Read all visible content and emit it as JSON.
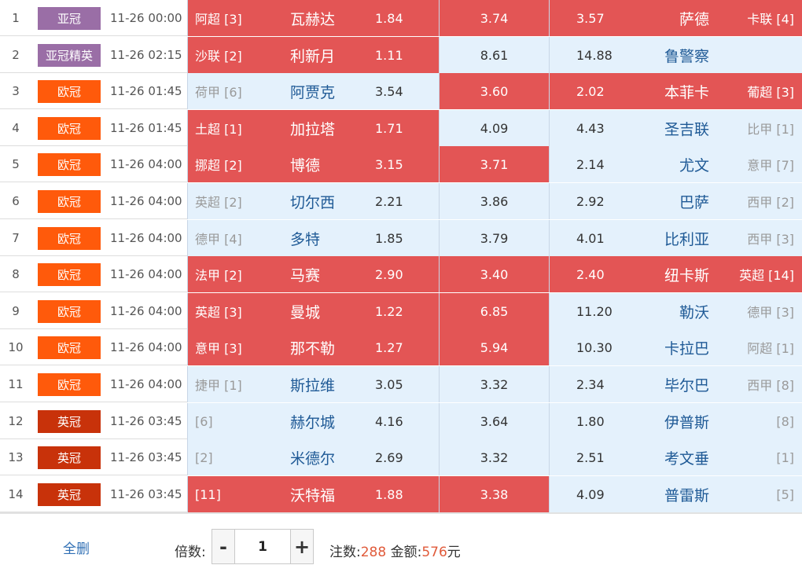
{
  "colors": {
    "asia_champions": "#9a6ea6",
    "europe_champions": "#ff5a0b",
    "england_champions": "#c8320a",
    "highlight_red": "#e35555",
    "highlight_blue": "#e4f1fc",
    "team_blue": "#1f5a96",
    "amount_orange": "#e05a3a"
  },
  "matches": [
    {
      "no": "1",
      "tag": "亚冠",
      "tag_color": "#9a6ea6",
      "time": "11-26 00:00",
      "home_league": "阿超 [3]",
      "home_team": "瓦赫达",
      "home_odds": "1.84",
      "draw_odds": "3.74",
      "away_odds": "3.57",
      "away_team": "萨德",
      "away_league": "卡联 [4]",
      "home_sel": true,
      "draw_sel": true,
      "away_sel": true
    },
    {
      "no": "2",
      "tag": "亚冠精英",
      "tag_color": "#9a6ea6",
      "time": "11-26 02:15",
      "home_league": "沙联 [2]",
      "home_team": "利新月",
      "home_odds": "1.11",
      "draw_odds": "8.61",
      "away_odds": "14.88",
      "away_team": "鲁警察",
      "away_league": "",
      "home_sel": true,
      "draw_sel": false,
      "away_sel": false
    },
    {
      "no": "3",
      "tag": "欧冠",
      "tag_color": "#ff5a0b",
      "time": "11-26 01:45",
      "home_league": "荷甲 [6]",
      "home_team": "阿贾克",
      "home_odds": "3.54",
      "draw_odds": "3.60",
      "away_odds": "2.02",
      "away_team": "本菲卡",
      "away_league": "葡超 [3]",
      "home_sel": false,
      "draw_sel": true,
      "away_sel": true
    },
    {
      "no": "4",
      "tag": "欧冠",
      "tag_color": "#ff5a0b",
      "time": "11-26 01:45",
      "home_league": "土超 [1]",
      "home_team": "加拉塔",
      "home_odds": "1.71",
      "draw_odds": "4.09",
      "away_odds": "4.43",
      "away_team": "圣吉联",
      "away_league": "比甲 [1]",
      "home_sel": true,
      "draw_sel": false,
      "away_sel": false
    },
    {
      "no": "5",
      "tag": "欧冠",
      "tag_color": "#ff5a0b",
      "time": "11-26 04:00",
      "home_league": "挪超 [2]",
      "home_team": "博德",
      "home_odds": "3.15",
      "draw_odds": "3.71",
      "away_odds": "2.14",
      "away_team": "尤文",
      "away_league": "意甲 [7]",
      "home_sel": true,
      "draw_sel": true,
      "away_sel": false
    },
    {
      "no": "6",
      "tag": "欧冠",
      "tag_color": "#ff5a0b",
      "time": "11-26 04:00",
      "home_league": "英超 [2]",
      "home_team": "切尔西",
      "home_odds": "2.21",
      "draw_odds": "3.86",
      "away_odds": "2.92",
      "away_team": "巴萨",
      "away_league": "西甲 [2]",
      "home_sel": false,
      "draw_sel": false,
      "away_sel": false
    },
    {
      "no": "7",
      "tag": "欧冠",
      "tag_color": "#ff5a0b",
      "time": "11-26 04:00",
      "home_league": "德甲 [4]",
      "home_team": "多特",
      "home_odds": "1.85",
      "draw_odds": "3.79",
      "away_odds": "4.01",
      "away_team": "比利亚",
      "away_league": "西甲 [3]",
      "home_sel": false,
      "draw_sel": false,
      "away_sel": false
    },
    {
      "no": "8",
      "tag": "欧冠",
      "tag_color": "#ff5a0b",
      "time": "11-26 04:00",
      "home_league": "法甲 [2]",
      "home_team": "马赛",
      "home_odds": "2.90",
      "draw_odds": "3.40",
      "away_odds": "2.40",
      "away_team": "纽卡斯",
      "away_league": "英超 [14]",
      "home_sel": true,
      "draw_sel": true,
      "away_sel": true
    },
    {
      "no": "9",
      "tag": "欧冠",
      "tag_color": "#ff5a0b",
      "time": "11-26 04:00",
      "home_league": "英超 [3]",
      "home_team": "曼城",
      "home_odds": "1.22",
      "draw_odds": "6.85",
      "away_odds": "11.20",
      "away_team": "勒沃",
      "away_league": "德甲 [3]",
      "home_sel": true,
      "draw_sel": true,
      "away_sel": false
    },
    {
      "no": "10",
      "tag": "欧冠",
      "tag_color": "#ff5a0b",
      "time": "11-26 04:00",
      "home_league": "意甲 [3]",
      "home_team": "那不勒",
      "home_odds": "1.27",
      "draw_odds": "5.94",
      "away_odds": "10.30",
      "away_team": "卡拉巴",
      "away_league": "阿超 [1]",
      "home_sel": true,
      "draw_sel": true,
      "away_sel": false
    },
    {
      "no": "11",
      "tag": "欧冠",
      "tag_color": "#ff5a0b",
      "time": "11-26 04:00",
      "home_league": "捷甲 [1]",
      "home_team": "斯拉维",
      "home_odds": "3.05",
      "draw_odds": "3.32",
      "away_odds": "2.34",
      "away_team": "毕尔巴",
      "away_league": "西甲 [8]",
      "home_sel": false,
      "draw_sel": false,
      "away_sel": false
    },
    {
      "no": "12",
      "tag": "英冠",
      "tag_color": "#c8320a",
      "time": "11-26 03:45",
      "home_league": "[6]",
      "home_team": "赫尔城",
      "home_odds": "4.16",
      "draw_odds": "3.64",
      "away_odds": "1.80",
      "away_team": "伊普斯",
      "away_league": "[8]",
      "home_sel": false,
      "draw_sel": false,
      "away_sel": false
    },
    {
      "no": "13",
      "tag": "英冠",
      "tag_color": "#c8320a",
      "time": "11-26 03:45",
      "home_league": "[2]",
      "home_team": "米德尔",
      "home_odds": "2.69",
      "draw_odds": "3.32",
      "away_odds": "2.51",
      "away_team": "考文垂",
      "away_league": "[1]",
      "home_sel": false,
      "draw_sel": false,
      "away_sel": false
    },
    {
      "no": "14",
      "tag": "英冠",
      "tag_color": "#c8320a",
      "time": "11-26 03:45",
      "home_league": "[11]",
      "home_team": "沃特福",
      "home_odds": "1.88",
      "draw_odds": "3.38",
      "away_odds": "4.09",
      "away_team": "普雷斯",
      "away_league": "[5]",
      "home_sel": true,
      "draw_sel": true,
      "away_sel": false
    }
  ],
  "footer": {
    "clear_all": "全删",
    "multiplier_label": "倍数:",
    "minus": "-",
    "plus": "+",
    "multiplier_value": "1",
    "bets_label": "注数:",
    "bets_value": "288",
    "amount_label": "金额:",
    "amount_value": "576",
    "amount_unit": "元"
  }
}
